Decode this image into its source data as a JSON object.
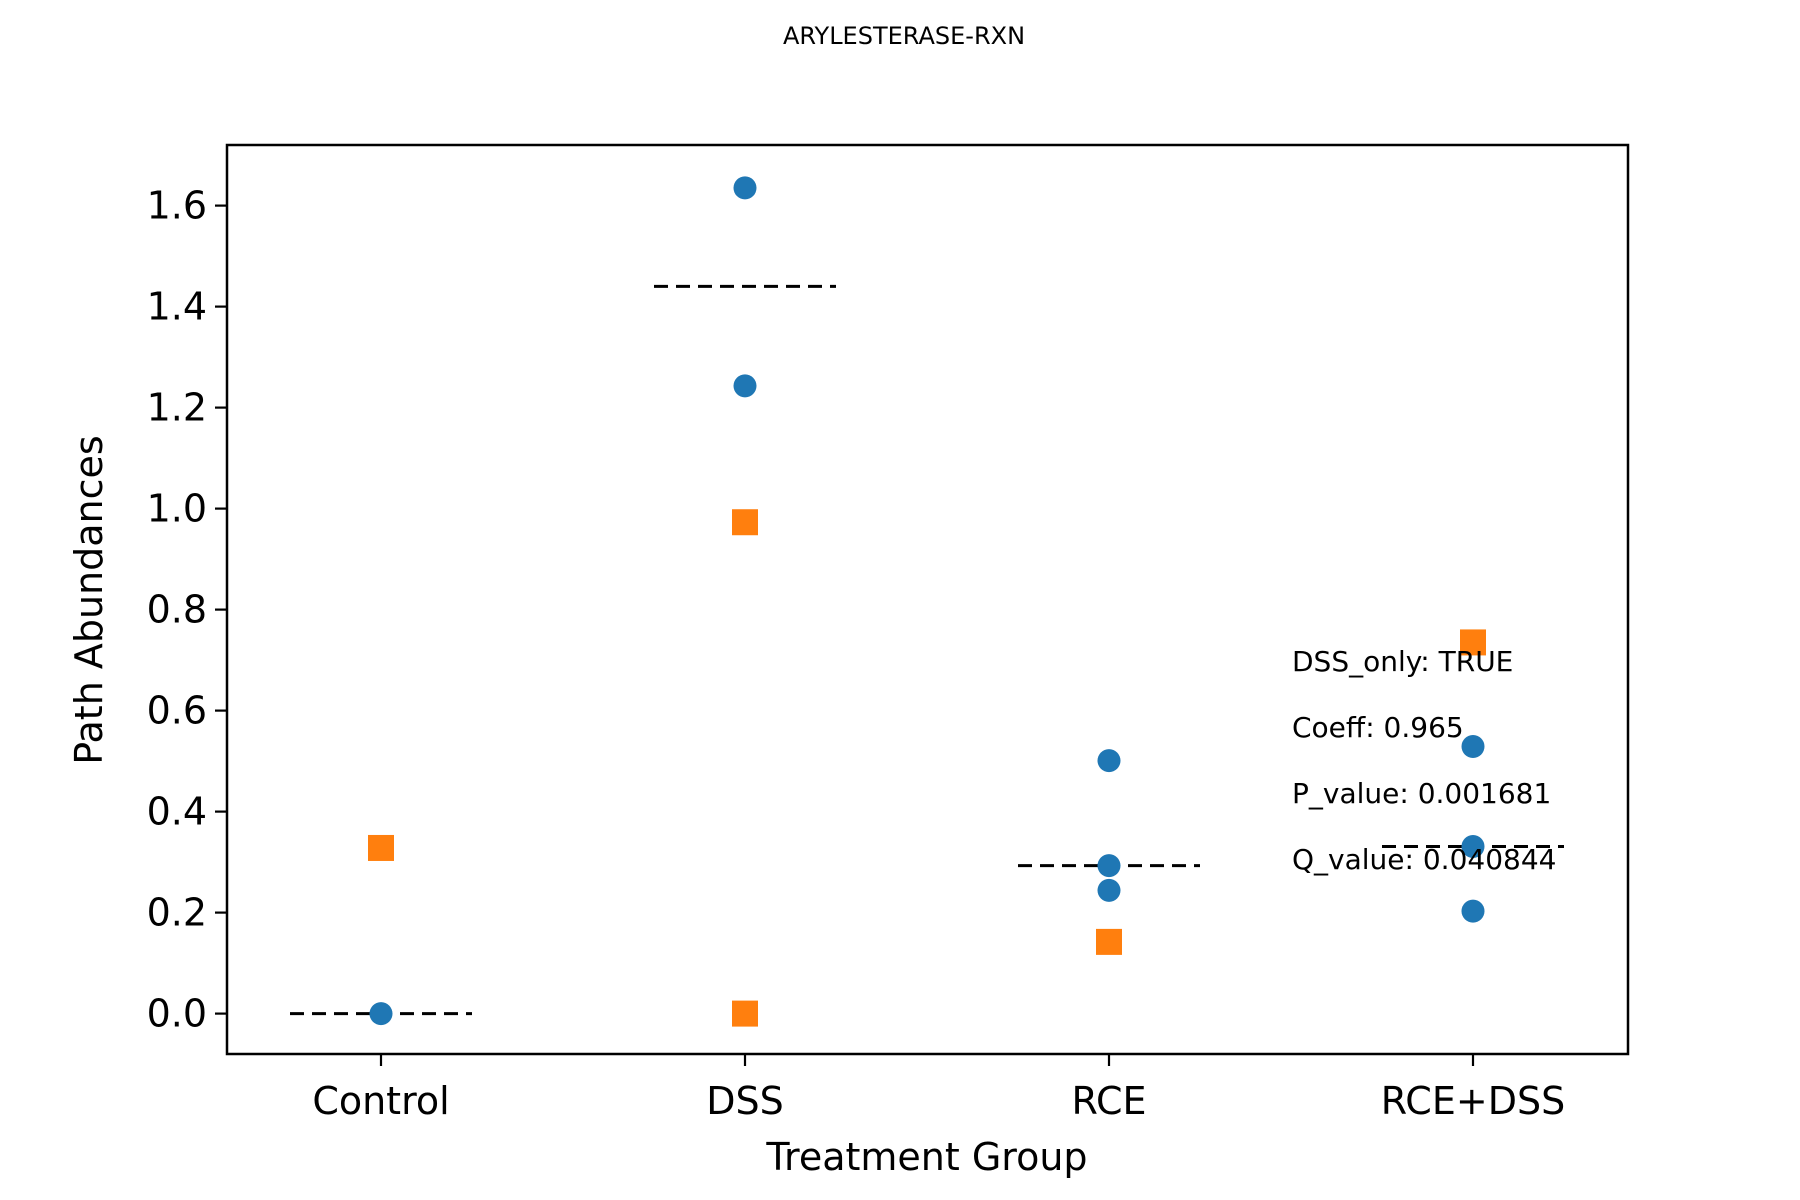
{
  "chart_data": {
    "type": "scatter",
    "title": "ARYLESTERASE-RXN",
    "xlabel": "Treatment Group",
    "ylabel": "Path Abundances",
    "categories": [
      "Control",
      "DSS",
      "RCE",
      "RCE+DSS"
    ],
    "ylim": [
      -0.08,
      1.72
    ],
    "yticks": [
      0.0,
      0.2,
      0.4,
      0.6,
      0.8,
      1.0,
      1.2,
      1.4,
      1.6
    ],
    "ytick_labels": [
      "0.0",
      "0.2",
      "0.4",
      "0.6",
      "0.8",
      "1.0",
      "1.2",
      "1.4",
      "1.6"
    ],
    "grid": false,
    "series": [
      {
        "marker": "circle",
        "color": "#1f77b4",
        "points": [
          {
            "category": "Control",
            "y": 0.0
          },
          {
            "category": "DSS",
            "y": 1.635
          },
          {
            "category": "DSS",
            "y": 1.243
          },
          {
            "category": "RCE",
            "y": 0.501
          },
          {
            "category": "RCE",
            "y": 0.293
          },
          {
            "category": "RCE",
            "y": 0.244
          },
          {
            "category": "RCE+DSS",
            "y": 0.529
          },
          {
            "category": "RCE+DSS",
            "y": 0.331
          },
          {
            "category": "RCE+DSS",
            "y": 0.203
          }
        ]
      },
      {
        "marker": "square",
        "color": "#ff7f0e",
        "points": [
          {
            "category": "Control",
            "y": 0.328
          },
          {
            "category": "DSS",
            "y": 0.973
          },
          {
            "category": "DSS",
            "y": 0.0
          },
          {
            "category": "RCE",
            "y": 0.142
          },
          {
            "category": "RCE+DSS",
            "y": 0.735
          }
        ]
      }
    ],
    "mean_lines": [
      {
        "category": "Control",
        "y": 0.0
      },
      {
        "category": "DSS",
        "y": 1.44
      },
      {
        "category": "RCE",
        "y": 0.293
      },
      {
        "category": "RCE+DSS",
        "y": 0.331
      }
    ],
    "annotations": [
      "DSS_only: TRUE",
      "Coeff: 0.965",
      "P_value: 0.001681",
      "Q_value: 0.040844"
    ]
  }
}
